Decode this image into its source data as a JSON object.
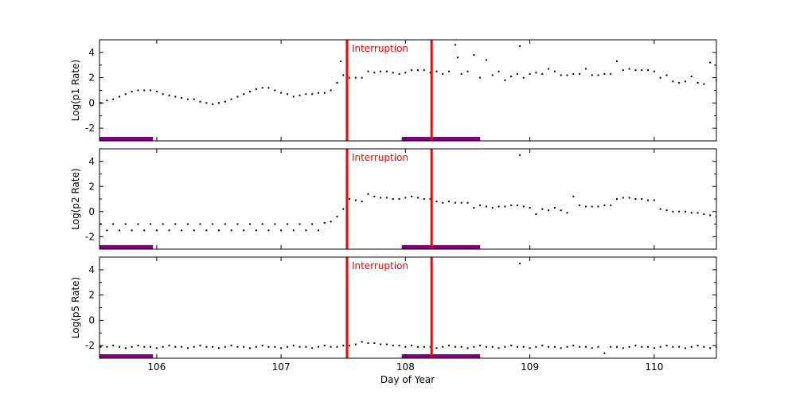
{
  "chart_data": {
    "type": "scatter",
    "xlabel": "Day of Year",
    "xlim": [
      105.54,
      110.5
    ],
    "xticks": [
      "106",
      "107",
      "108",
      "109",
      "110"
    ],
    "colors": {
      "points": "#000000",
      "interruption": "#ff0000",
      "bars": "#800080"
    },
    "interruption": {
      "label": "Interruption",
      "x": [
        107.53,
        108.21
      ]
    },
    "bars": [
      [
        105.54,
        105.97
      ],
      [
        107.97,
        108.6
      ]
    ],
    "grid": false,
    "panels": [
      {
        "ylabel": "Log(p1 Rate)",
        "ylim": [
          -3,
          5
        ],
        "yticks": [
          "-2",
          "0",
          "2",
          "4"
        ],
        "points": [
          [
            105.55,
            0.0
          ],
          [
            105.6,
            0.2
          ],
          [
            105.65,
            0.3
          ],
          [
            105.7,
            0.5
          ],
          [
            105.75,
            0.7
          ],
          [
            105.8,
            0.9
          ],
          [
            105.85,
            1.0
          ],
          [
            105.9,
            1.0
          ],
          [
            105.95,
            1.0
          ],
          [
            106.0,
            0.9
          ],
          [
            106.05,
            0.7
          ],
          [
            106.1,
            0.6
          ],
          [
            106.15,
            0.5
          ],
          [
            106.2,
            0.4
          ],
          [
            106.25,
            0.3
          ],
          [
            106.3,
            0.3
          ],
          [
            106.35,
            0.1
          ],
          [
            106.4,
            0.0
          ],
          [
            106.45,
            -0.1
          ],
          [
            106.5,
            0.0
          ],
          [
            106.55,
            0.1
          ],
          [
            106.6,
            0.3
          ],
          [
            106.65,
            0.5
          ],
          [
            106.7,
            0.7
          ],
          [
            106.75,
            0.9
          ],
          [
            106.8,
            1.1
          ],
          [
            106.85,
            1.2
          ],
          [
            106.9,
            1.2
          ],
          [
            106.95,
            1.0
          ],
          [
            107.0,
            0.8
          ],
          [
            107.05,
            0.7
          ],
          [
            107.1,
            0.5
          ],
          [
            107.15,
            0.6
          ],
          [
            107.2,
            0.7
          ],
          [
            107.25,
            0.7
          ],
          [
            107.3,
            0.8
          ],
          [
            107.35,
            0.8
          ],
          [
            107.4,
            1.0
          ],
          [
            107.45,
            1.6
          ],
          [
            107.48,
            3.3
          ],
          [
            107.5,
            2.2
          ],
          [
            107.55,
            2.0
          ],
          [
            107.6,
            2.0
          ],
          [
            107.65,
            2.0
          ],
          [
            107.7,
            2.5
          ],
          [
            107.75,
            2.4
          ],
          [
            107.8,
            2.5
          ],
          [
            107.85,
            2.5
          ],
          [
            107.9,
            2.4
          ],
          [
            107.95,
            2.3
          ],
          [
            108.0,
            2.4
          ],
          [
            108.05,
            2.6
          ],
          [
            108.1,
            2.6
          ],
          [
            108.15,
            2.6
          ],
          [
            108.2,
            2.4
          ],
          [
            108.25,
            2.5
          ],
          [
            108.3,
            2.3
          ],
          [
            108.35,
            2.5
          ],
          [
            108.4,
            4.6
          ],
          [
            108.42,
            3.6
          ],
          [
            108.45,
            2.3
          ],
          [
            108.5,
            2.5
          ],
          [
            108.55,
            3.8
          ],
          [
            108.6,
            2.0
          ],
          [
            108.65,
            3.4
          ],
          [
            108.7,
            2.2
          ],
          [
            108.75,
            2.5
          ],
          [
            108.8,
            1.8
          ],
          [
            108.85,
            2.1
          ],
          [
            108.9,
            2.3
          ],
          [
            108.92,
            4.5
          ],
          [
            108.95,
            2.0
          ],
          [
            109.0,
            2.3
          ],
          [
            109.05,
            2.4
          ],
          [
            109.1,
            2.3
          ],
          [
            109.15,
            2.7
          ],
          [
            109.2,
            2.5
          ],
          [
            109.25,
            2.2
          ],
          [
            109.3,
            2.2
          ],
          [
            109.35,
            2.3
          ],
          [
            109.4,
            2.3
          ],
          [
            109.45,
            2.7
          ],
          [
            109.5,
            2.2
          ],
          [
            109.55,
            2.2
          ],
          [
            109.6,
            2.3
          ],
          [
            109.65,
            2.3
          ],
          [
            109.7,
            3.3
          ],
          [
            109.75,
            2.6
          ],
          [
            109.8,
            2.7
          ],
          [
            109.85,
            2.6
          ],
          [
            109.9,
            2.6
          ],
          [
            109.95,
            2.6
          ],
          [
            110.0,
            2.5
          ],
          [
            110.05,
            2.0
          ],
          [
            110.1,
            2.2
          ],
          [
            110.15,
            1.7
          ],
          [
            110.2,
            1.6
          ],
          [
            110.25,
            1.7
          ],
          [
            110.3,
            2.1
          ],
          [
            110.35,
            1.6
          ],
          [
            110.4,
            1.5
          ],
          [
            110.45,
            3.2
          ],
          [
            110.5,
            1.8
          ]
        ]
      },
      {
        "ylabel": "Log(p2 Rate)",
        "ylim": [
          -3,
          5
        ],
        "yticks": [
          "-2",
          "0",
          "2",
          "4"
        ],
        "points": [
          [
            105.55,
            -1.0
          ],
          [
            105.6,
            -1.5
          ],
          [
            105.65,
            -1.0
          ],
          [
            105.7,
            -1.5
          ],
          [
            105.75,
            -1.0
          ],
          [
            105.8,
            -1.5
          ],
          [
            105.85,
            -1.0
          ],
          [
            105.9,
            -1.5
          ],
          [
            105.95,
            -1.0
          ],
          [
            106.0,
            -1.5
          ],
          [
            106.05,
            -1.0
          ],
          [
            106.1,
            -1.5
          ],
          [
            106.15,
            -1.0
          ],
          [
            106.2,
            -1.5
          ],
          [
            106.25,
            -1.0
          ],
          [
            106.3,
            -1.5
          ],
          [
            106.35,
            -1.0
          ],
          [
            106.4,
            -1.5
          ],
          [
            106.45,
            -1.0
          ],
          [
            106.5,
            -1.5
          ],
          [
            106.55,
            -1.0
          ],
          [
            106.6,
            -1.5
          ],
          [
            106.65,
            -1.0
          ],
          [
            106.7,
            -1.5
          ],
          [
            106.75,
            -1.0
          ],
          [
            106.8,
            -1.5
          ],
          [
            106.85,
            -1.0
          ],
          [
            106.9,
            -1.5
          ],
          [
            106.95,
            -1.0
          ],
          [
            107.0,
            -1.5
          ],
          [
            107.05,
            -1.0
          ],
          [
            107.1,
            -1.5
          ],
          [
            107.15,
            -1.0
          ],
          [
            107.2,
            -1.5
          ],
          [
            107.25,
            -1.0
          ],
          [
            107.3,
            -1.5
          ],
          [
            107.35,
            -0.9
          ],
          [
            107.4,
            -0.8
          ],
          [
            107.45,
            -0.4
          ],
          [
            107.5,
            0.2
          ],
          [
            107.55,
            1.0
          ],
          [
            107.6,
            0.9
          ],
          [
            107.65,
            0.8
          ],
          [
            107.7,
            1.4
          ],
          [
            107.75,
            1.2
          ],
          [
            107.8,
            1.1
          ],
          [
            107.85,
            1.1
          ],
          [
            107.9,
            1.0
          ],
          [
            107.95,
            1.0
          ],
          [
            108.0,
            1.1
          ],
          [
            108.05,
            1.2
          ],
          [
            108.1,
            1.1
          ],
          [
            108.15,
            1.0
          ],
          [
            108.2,
            1.0
          ],
          [
            108.25,
            0.8
          ],
          [
            108.3,
            0.7
          ],
          [
            108.35,
            0.8
          ],
          [
            108.4,
            0.7
          ],
          [
            108.45,
            0.7
          ],
          [
            108.5,
            0.7
          ],
          [
            108.55,
            0.3
          ],
          [
            108.6,
            0.5
          ],
          [
            108.65,
            0.4
          ],
          [
            108.7,
            0.3
          ],
          [
            108.75,
            0.4
          ],
          [
            108.8,
            0.4
          ],
          [
            108.85,
            0.5
          ],
          [
            108.9,
            0.5
          ],
          [
            108.92,
            4.5
          ],
          [
            108.95,
            0.4
          ],
          [
            109.0,
            0.3
          ],
          [
            109.05,
            -0.2
          ],
          [
            109.1,
            0.2
          ],
          [
            109.15,
            0.1
          ],
          [
            109.2,
            0.3
          ],
          [
            109.25,
            0.1
          ],
          [
            109.3,
            -0.1
          ],
          [
            109.35,
            1.2
          ],
          [
            109.4,
            0.5
          ],
          [
            109.45,
            0.4
          ],
          [
            109.5,
            0.4
          ],
          [
            109.55,
            0.4
          ],
          [
            109.6,
            0.5
          ],
          [
            109.65,
            0.5
          ],
          [
            109.7,
            1.0
          ],
          [
            109.75,
            1.1
          ],
          [
            109.8,
            1.1
          ],
          [
            109.85,
            1.0
          ],
          [
            109.9,
            1.0
          ],
          [
            109.95,
            0.9
          ],
          [
            110.0,
            0.9
          ],
          [
            110.05,
            0.2
          ],
          [
            110.1,
            0.1
          ],
          [
            110.15,
            0.0
          ],
          [
            110.2,
            0.0
          ],
          [
            110.25,
            0.0
          ],
          [
            110.3,
            -0.1
          ],
          [
            110.35,
            -0.1
          ],
          [
            110.4,
            -0.2
          ],
          [
            110.45,
            -0.3
          ],
          [
            110.5,
            -0.4
          ]
        ]
      },
      {
        "ylabel": "Log(p5 Rate)",
        "ylim": [
          -3,
          5
        ],
        "yticks": [
          "-2",
          "0",
          "2",
          "4"
        ],
        "points": [
          [
            105.55,
            -2.1
          ],
          [
            105.6,
            -2.1
          ],
          [
            105.65,
            -2.0
          ],
          [
            105.7,
            -2.1
          ],
          [
            105.75,
            -2.2
          ],
          [
            105.8,
            -2.1
          ],
          [
            105.85,
            -2.0
          ],
          [
            105.9,
            -2.1
          ],
          [
            105.95,
            -2.1
          ],
          [
            106.0,
            -2.2
          ],
          [
            106.05,
            -2.1
          ],
          [
            106.1,
            -2.0
          ],
          [
            106.15,
            -2.1
          ],
          [
            106.2,
            -2.1
          ],
          [
            106.25,
            -2.2
          ],
          [
            106.3,
            -2.1
          ],
          [
            106.35,
            -2.0
          ],
          [
            106.4,
            -2.1
          ],
          [
            106.45,
            -2.1
          ],
          [
            106.5,
            -2.2
          ],
          [
            106.55,
            -2.1
          ],
          [
            106.6,
            -2.0
          ],
          [
            106.65,
            -2.1
          ],
          [
            106.7,
            -2.1
          ],
          [
            106.75,
            -2.2
          ],
          [
            106.8,
            -2.1
          ],
          [
            106.85,
            -2.0
          ],
          [
            106.9,
            -2.1
          ],
          [
            106.95,
            -2.1
          ],
          [
            107.0,
            -2.2
          ],
          [
            107.05,
            -2.1
          ],
          [
            107.1,
            -2.0
          ],
          [
            107.15,
            -2.1
          ],
          [
            107.2,
            -2.1
          ],
          [
            107.25,
            -2.2
          ],
          [
            107.3,
            -2.1
          ],
          [
            107.35,
            -2.0
          ],
          [
            107.4,
            -2.1
          ],
          [
            107.45,
            -2.1
          ],
          [
            107.5,
            -2.0
          ],
          [
            107.55,
            -2.0
          ],
          [
            107.6,
            -1.9
          ],
          [
            107.65,
            -1.7
          ],
          [
            107.7,
            -1.8
          ],
          [
            107.75,
            -1.8
          ],
          [
            107.8,
            -1.9
          ],
          [
            107.85,
            -1.9
          ],
          [
            107.9,
            -2.0
          ],
          [
            107.95,
            -2.0
          ],
          [
            108.0,
            -2.1
          ],
          [
            108.05,
            -2.0
          ],
          [
            108.1,
            -2.1
          ],
          [
            108.15,
            -2.1
          ],
          [
            108.2,
            -2.1
          ],
          [
            108.25,
            -2.2
          ],
          [
            108.3,
            -2.1
          ],
          [
            108.35,
            -2.0
          ],
          [
            108.4,
            -2.1
          ],
          [
            108.45,
            -2.1
          ],
          [
            108.5,
            -2.2
          ],
          [
            108.55,
            -2.1
          ],
          [
            108.6,
            -2.0
          ],
          [
            108.65,
            -2.1
          ],
          [
            108.7,
            -2.1
          ],
          [
            108.75,
            -2.2
          ],
          [
            108.8,
            -2.1
          ],
          [
            108.85,
            -2.0
          ],
          [
            108.9,
            -2.1
          ],
          [
            108.92,
            4.5
          ],
          [
            108.95,
            -2.1
          ],
          [
            109.0,
            -2.2
          ],
          [
            109.05,
            -2.1
          ],
          [
            109.1,
            -2.0
          ],
          [
            109.15,
            -2.1
          ],
          [
            109.2,
            -2.1
          ],
          [
            109.25,
            -2.2
          ],
          [
            109.3,
            -2.1
          ],
          [
            109.35,
            -2.0
          ],
          [
            109.4,
            -2.1
          ],
          [
            109.45,
            -2.1
          ],
          [
            109.5,
            -2.2
          ],
          [
            109.55,
            -2.1
          ],
          [
            109.6,
            -2.6
          ],
          [
            109.65,
            -2.1
          ],
          [
            109.7,
            -2.1
          ],
          [
            109.75,
            -2.2
          ],
          [
            109.8,
            -2.1
          ],
          [
            109.85,
            -2.0
          ],
          [
            109.9,
            -2.1
          ],
          [
            109.95,
            -2.1
          ],
          [
            110.0,
            -2.2
          ],
          [
            110.05,
            -2.1
          ],
          [
            110.1,
            -2.0
          ],
          [
            110.15,
            -2.1
          ],
          [
            110.2,
            -2.1
          ],
          [
            110.25,
            -2.2
          ],
          [
            110.3,
            -2.1
          ],
          [
            110.35,
            -2.0
          ],
          [
            110.4,
            -2.1
          ],
          [
            110.45,
            -2.2
          ],
          [
            110.5,
            -2.1
          ]
        ]
      }
    ]
  }
}
